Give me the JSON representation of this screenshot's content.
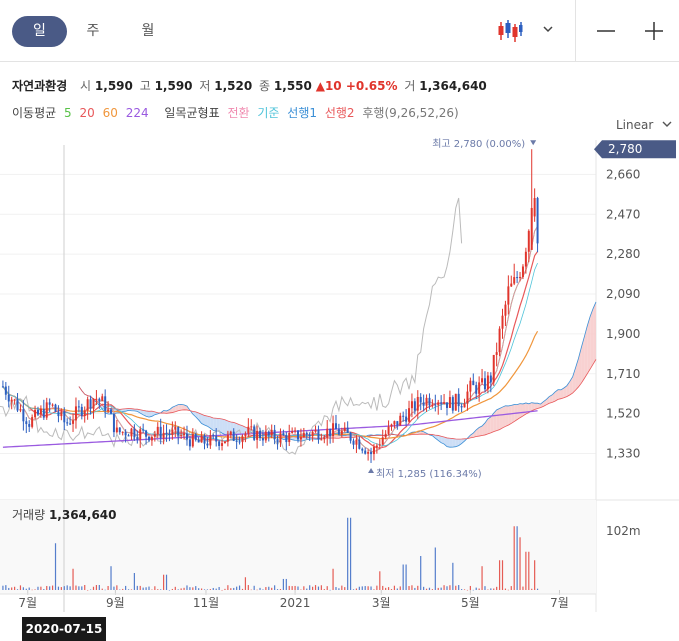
{
  "tabs": [
    {
      "label": "일"
    },
    {
      "label": "주"
    },
    {
      "label": "월"
    }
  ],
  "icons": {
    "chart_type": "candlestick-icon",
    "dropdown": "chevron-down-icon",
    "zoom_out": "minus-icon",
    "zoom_in": "plus-icon"
  },
  "stock": {
    "name": "자연과환경",
    "open_label": "시",
    "open": "1,590",
    "high_label": "고",
    "high": "1,590",
    "low_label": "저",
    "low": "1,520",
    "close_label": "종",
    "close": "1,550",
    "change": "▲10 +0.65%",
    "volume_label": "거",
    "volume": "1,364,640"
  },
  "indicators": {
    "ma_label": "이동평균",
    "ma_periods": [
      {
        "label": "5",
        "color": "#58c248"
      },
      {
        "label": "20",
        "color": "#e8585a"
      },
      {
        "label": "60",
        "color": "#f0963c"
      },
      {
        "label": "224",
        "color": "#9a5ae0"
      }
    ],
    "ichimoku_label": "일목균형표",
    "ichimoku_items": [
      {
        "label": "전환",
        "color": "#f08bb0"
      },
      {
        "label": "기준",
        "color": "#4fc3d9"
      },
      {
        "label": "선행1",
        "color": "#3b8fd6"
      },
      {
        "label": "선행2",
        "color": "#e8585a"
      },
      {
        "label": "후행(9,26,52,26)",
        "color": "#777777"
      }
    ]
  },
  "scale": {
    "label": "Linear"
  },
  "colors": {
    "up": "#e0352c",
    "down": "#2c5fc0",
    "badge": "#4a5a86",
    "cloud_up": "#f7c9c9",
    "cloud_down": "#c3d8f5"
  },
  "chart_data": {
    "type": "candlestick",
    "price_ticks": [
      "2,660",
      "2,470",
      "2,280",
      "2,090",
      "1,900",
      "1,710",
      "1,520",
      "1,330"
    ],
    "price_tick_values": [
      2660,
      2470,
      2280,
      2090,
      1900,
      1710,
      1520,
      1330
    ],
    "current_price": "2,780",
    "ylim": [
      1180,
      2800
    ],
    "x_ticks": [
      "7월",
      "9월",
      "11월",
      "2021",
      "3월",
      "5월",
      "7월"
    ],
    "x_tick_days": [
      -11,
      49,
      111,
      172,
      231,
      292,
      353
    ],
    "crosshair_date": "2020-07-15",
    "high_annotation": {
      "label": "최고",
      "price": "2,780",
      "pct": "(0.00%)",
      "day": 335,
      "value": 2780
    },
    "low_annotation": {
      "label": "최저",
      "price": "1,285",
      "pct": "(116.34%)",
      "day": 224,
      "value": 1285
    },
    "volume_label": "거래량",
    "volume_value": "1,364,640",
    "volume_tick": "102m",
    "volume_max": 102000000,
    "anchors": [
      [
        -28,
        1650
      ],
      [
        -10,
        1480
      ],
      [
        5,
        1560
      ],
      [
        15,
        1470
      ],
      [
        25,
        1540
      ],
      [
        35,
        1600
      ],
      [
        42,
        1560
      ],
      [
        50,
        1430
      ],
      [
        60,
        1440
      ],
      [
        70,
        1420
      ],
      [
        80,
        1430
      ],
      [
        92,
        1420
      ],
      [
        105,
        1380
      ],
      [
        115,
        1390
      ],
      [
        125,
        1400
      ],
      [
        140,
        1430
      ],
      [
        155,
        1410
      ],
      [
        170,
        1410
      ],
      [
        185,
        1430
      ],
      [
        200,
        1440
      ],
      [
        213,
        1400
      ],
      [
        224,
        1330
      ],
      [
        232,
        1410
      ],
      [
        245,
        1500
      ],
      [
        258,
        1580
      ],
      [
        268,
        1600
      ],
      [
        278,
        1570
      ],
      [
        286,
        1580
      ],
      [
        292,
        1640
      ],
      [
        300,
        1650
      ],
      [
        306,
        1690
      ],
      [
        312,
        1900
      ],
      [
        318,
        2100
      ],
      [
        323,
        2150
      ],
      [
        328,
        2250
      ],
      [
        333,
        2450
      ],
      [
        336,
        2600
      ],
      [
        338,
        2330
      ]
    ],
    "volume_spikes": [
      [
        8,
        0.55
      ],
      [
        20,
        0.25
      ],
      [
        46,
        0.28
      ],
      [
        62,
        0.2
      ],
      [
        83,
        0.18
      ],
      [
        138,
        0.15
      ],
      [
        165,
        0.13
      ],
      [
        198,
        0.25
      ],
      [
        209,
        0.85
      ],
      [
        230,
        0.22
      ],
      [
        247,
        0.3
      ],
      [
        258,
        0.4
      ],
      [
        268,
        0.5
      ],
      [
        280,
        0.32
      ],
      [
        300,
        0.28
      ],
      [
        313,
        0.35
      ],
      [
        323,
        0.75
      ],
      [
        326,
        0.62
      ],
      [
        331,
        0.45
      ],
      [
        336,
        0.35
      ]
    ]
  }
}
